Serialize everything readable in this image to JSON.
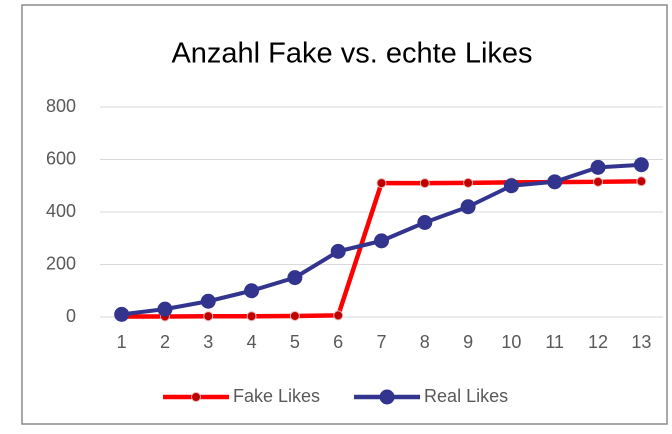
{
  "chart_data": {
    "type": "line",
    "title": "Anzahl Fake vs. echte Likes",
    "categories": [
      "1",
      "2",
      "3",
      "4",
      "5",
      "6",
      "7",
      "8",
      "9",
      "10",
      "11",
      "12",
      "13"
    ],
    "series": [
      {
        "name": "Fake Likes",
        "color": "#ff0000",
        "marker_color": "#c00000",
        "values": [
          2,
          2,
          3,
          3,
          4,
          6,
          510,
          510,
          511,
          513,
          514,
          515,
          517
        ]
      },
      {
        "name": "Real Likes",
        "color": "#33348e",
        "marker_color": "#33348e",
        "values": [
          10,
          30,
          60,
          100,
          150,
          250,
          290,
          360,
          420,
          500,
          515,
          570,
          580
        ]
      }
    ],
    "ylim": [
      0,
      800
    ],
    "yticks": [
      0,
      200,
      400,
      600,
      800
    ],
    "grid": true,
    "legend": "bottom"
  }
}
